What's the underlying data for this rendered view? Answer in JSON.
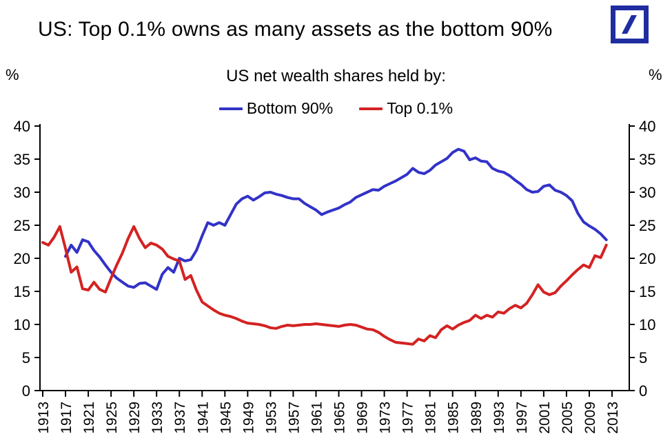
{
  "header": {
    "title": "US: Top 0.1% owns as many assets as the bottom 90%",
    "logo": "deutsche-bank-logo",
    "logo_color": "#1F2DA0"
  },
  "axes_units": {
    "left": "%",
    "right": "%"
  },
  "legend": [
    {
      "label": "Bottom 90%",
      "color": "#3232C8"
    },
    {
      "label": "Top 0.1%",
      "color": "#D42222"
    }
  ],
  "chart_data": {
    "type": "line",
    "title": "US: Top 0.1% owns as many assets as the bottom 90%",
    "subtitle": "US net wealth shares held by:",
    "ylabel_left": "%",
    "ylabel_right": "%",
    "ylim": [
      0,
      40
    ],
    "yticks": [
      0,
      5,
      10,
      15,
      20,
      25,
      30,
      35,
      40
    ],
    "xlim": [
      1913,
      2013
    ],
    "xticks": [
      1913,
      1917,
      1921,
      1925,
      1929,
      1933,
      1937,
      1941,
      1945,
      1949,
      1953,
      1957,
      1961,
      1965,
      1969,
      1973,
      1977,
      1981,
      1985,
      1989,
      1993,
      1997,
      2001,
      2005,
      2009,
      2013
    ],
    "grid": false,
    "legend_position": "top-center",
    "axis_color": "#000000",
    "series": [
      {
        "name": "Bottom 90%",
        "color": "#3232C8",
        "start_year": 1917,
        "values": [
          20.3,
          22.0,
          20.9,
          22.8,
          22.5,
          21.2,
          20.2,
          19.0,
          17.9,
          17.0,
          16.4,
          15.8,
          15.6,
          16.2,
          16.3,
          15.8,
          15.3,
          17.6,
          18.6,
          17.9,
          20.0,
          19.6,
          19.8,
          21.2,
          23.4,
          25.4,
          25.0,
          25.4,
          25.0,
          26.6,
          28.2,
          29.0,
          29.4,
          28.8,
          29.3,
          29.9,
          30.0,
          29.7,
          29.5,
          29.2,
          29.0,
          29.0,
          28.3,
          27.8,
          27.3,
          26.6,
          27.0,
          27.3,
          27.6,
          28.1,
          28.5,
          29.2,
          29.6,
          30.0,
          30.4,
          30.3,
          30.9,
          31.3,
          31.7,
          32.2,
          32.7,
          33.6,
          33.0,
          32.8,
          33.3,
          34.1,
          34.6,
          35.1,
          36.0,
          36.5,
          36.2,
          34.9,
          35.2,
          34.7,
          34.6,
          33.6,
          33.2,
          33.0,
          32.5,
          31.8,
          31.2,
          30.4,
          30.0,
          30.1,
          30.9,
          31.1,
          30.3,
          30.0,
          29.5,
          28.7,
          26.8,
          25.5,
          24.9,
          24.4,
          23.7,
          22.8
        ]
      },
      {
        "name": "Top 0.1%",
        "color": "#D42222",
        "start_year": 1913,
        "values": [
          22.4,
          22.0,
          23.2,
          24.8,
          21.5,
          17.9,
          18.7,
          15.4,
          15.2,
          16.4,
          15.3,
          14.9,
          17.0,
          19.0,
          20.8,
          23.0,
          24.8,
          23.0,
          21.6,
          22.3,
          22.0,
          21.4,
          20.3,
          19.9,
          19.6,
          16.8,
          17.4,
          15.2,
          13.4,
          12.8,
          12.2,
          11.7,
          11.4,
          11.2,
          10.9,
          10.5,
          10.2,
          10.1,
          10.0,
          9.8,
          9.5,
          9.4,
          9.7,
          9.9,
          9.8,
          9.9,
          10.0,
          10.0,
          10.1,
          10.0,
          9.9,
          9.8,
          9.7,
          9.9,
          10.0,
          9.9,
          9.6,
          9.3,
          9.2,
          8.8,
          8.2,
          7.7,
          7.3,
          7.2,
          7.1,
          7.0,
          7.8,
          7.5,
          8.3,
          8.0,
          9.2,
          9.8,
          9.3,
          9.9,
          10.3,
          10.6,
          11.4,
          10.9,
          11.4,
          11.1,
          11.9,
          11.7,
          12.4,
          12.9,
          12.5,
          13.2,
          14.5,
          16.0,
          14.9,
          14.5,
          14.8,
          15.8,
          16.6,
          17.5,
          18.3,
          19.0,
          18.6,
          20.4,
          20.1,
          22.0
        ]
      }
    ]
  }
}
